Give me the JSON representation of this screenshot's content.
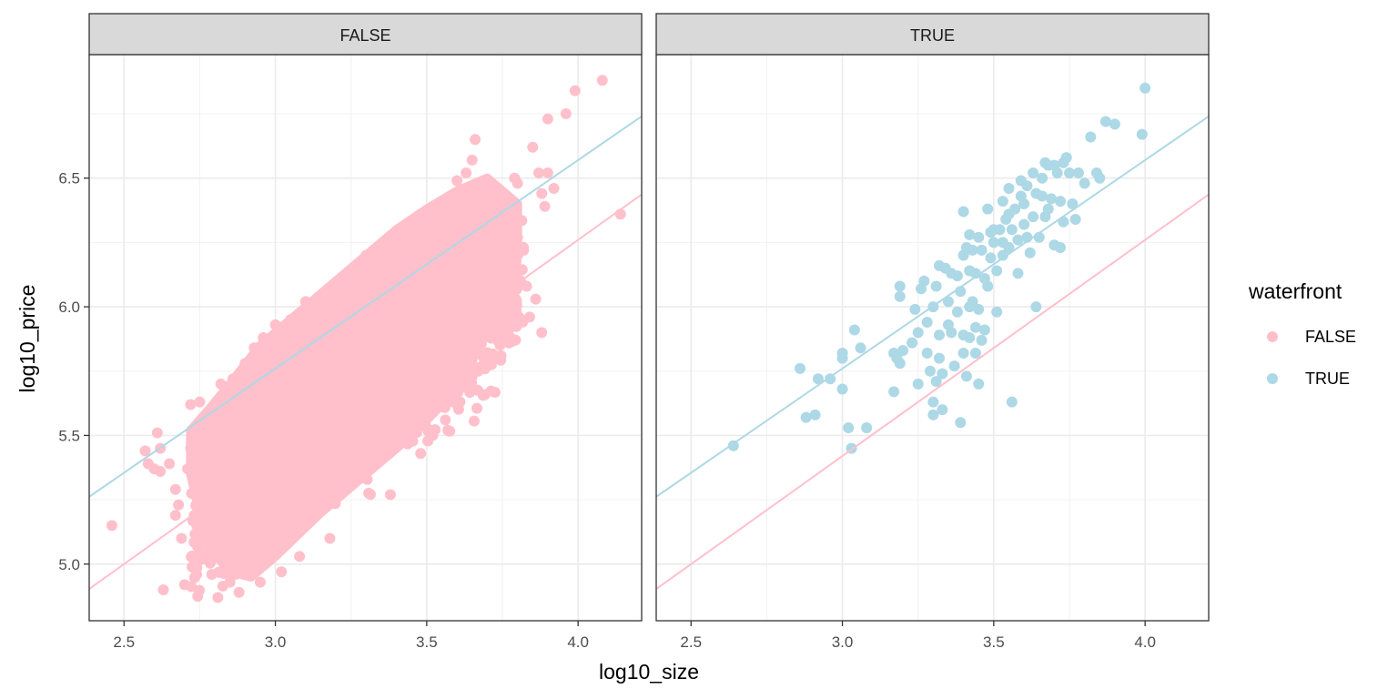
{
  "chart_data": {
    "type": "scatter",
    "facet_variable": "waterfront",
    "xlabel": "log10_size",
    "ylabel": "log10_price",
    "xlim": [
      2.385,
      4.21
    ],
    "ylim": [
      4.78,
      6.98
    ],
    "x_ticks": [
      2.5,
      3.0,
      3.5,
      4.0
    ],
    "x_tick_labels": [
      "2.5",
      "3.0",
      "3.5",
      "4.0"
    ],
    "y_ticks": [
      5.0,
      5.5,
      6.0,
      6.5
    ],
    "y_tick_labels": [
      "5.0",
      "5.5",
      "6.0",
      "6.5"
    ],
    "grid": true,
    "legend": {
      "title": "waterfront",
      "position": "right",
      "entries": [
        {
          "label": "FALSE",
          "color": "#FFC0CB"
        },
        {
          "label": "TRUE",
          "color": "#ADD8E6"
        }
      ]
    },
    "regression_lines": [
      {
        "group": "FALSE",
        "color": "#FFC0CB",
        "intercept": 2.9,
        "slope": 0.84
      },
      {
        "group": "TRUE",
        "color": "#ADD8E6",
        "intercept": 3.33,
        "slope": 0.81
      }
    ],
    "panels": [
      {
        "strip": "FALSE",
        "group": "FALSE",
        "color": "#FFC0CB",
        "cloud_polygon": [
          [
            2.72,
            5.52
          ],
          [
            2.78,
            5.6
          ],
          [
            2.85,
            5.7
          ],
          [
            2.95,
            5.85
          ],
          [
            3.1,
            6.0
          ],
          [
            3.25,
            6.15
          ],
          [
            3.4,
            6.3
          ],
          [
            3.5,
            6.38
          ],
          [
            3.6,
            6.45
          ],
          [
            3.7,
            6.5
          ],
          [
            3.8,
            6.4
          ],
          [
            3.8,
            6.2
          ],
          [
            3.75,
            6.0
          ],
          [
            3.65,
            5.8
          ],
          [
            3.55,
            5.62
          ],
          [
            3.45,
            5.5
          ],
          [
            3.3,
            5.35
          ],
          [
            3.15,
            5.2
          ],
          [
            3.0,
            5.03
          ],
          [
            2.92,
            4.95
          ],
          [
            2.85,
            4.97
          ],
          [
            2.8,
            5.05
          ],
          [
            2.75,
            5.2
          ],
          [
            2.72,
            5.35
          ]
        ],
        "points": [
          [
            2.46,
            5.15
          ],
          [
            2.57,
            5.44
          ],
          [
            2.58,
            5.39
          ],
          [
            2.6,
            5.37
          ],
          [
            2.61,
            5.51
          ],
          [
            2.62,
            5.36
          ],
          [
            2.63,
            4.9
          ],
          [
            2.62,
            5.45
          ],
          [
            2.65,
            5.39
          ],
          [
            2.67,
            5.19
          ],
          [
            2.67,
            5.29
          ],
          [
            2.68,
            5.23
          ],
          [
            2.69,
            5.1
          ],
          [
            2.7,
            4.92
          ],
          [
            2.71,
            5.37
          ],
          [
            2.72,
            5.62
          ],
          [
            2.72,
            5.45
          ],
          [
            2.73,
            5.28
          ],
          [
            2.74,
            4.96
          ],
          [
            2.75,
            5.63
          ],
          [
            2.75,
            5.05
          ],
          [
            2.77,
            5.58
          ],
          [
            2.78,
            5.02
          ],
          [
            2.79,
            4.96
          ],
          [
            2.8,
            5.3
          ],
          [
            2.81,
            4.87
          ],
          [
            2.82,
            5.7
          ],
          [
            2.83,
            5.0
          ],
          [
            2.84,
            5.65
          ],
          [
            2.85,
            4.93
          ],
          [
            2.86,
            5.72
          ],
          [
            2.88,
            4.89
          ],
          [
            2.9,
            5.78
          ],
          [
            2.91,
            4.98
          ],
          [
            2.93,
            5.84
          ],
          [
            2.95,
            4.93
          ],
          [
            2.96,
            5.88
          ],
          [
            3.0,
            5.93
          ],
          [
            3.02,
            4.97
          ],
          [
            3.05,
            5.95
          ],
          [
            3.08,
            5.03
          ],
          [
            3.1,
            6.02
          ],
          [
            3.15,
            6.02
          ],
          [
            3.18,
            5.1
          ],
          [
            3.2,
            6.08
          ],
          [
            3.25,
            6.12
          ],
          [
            3.3,
            6.2
          ],
          [
            3.35,
            6.23
          ],
          [
            3.38,
            5.27
          ],
          [
            3.4,
            6.29
          ],
          [
            3.45,
            6.33
          ],
          [
            3.48,
            5.43
          ],
          [
            3.5,
            6.37
          ],
          [
            3.52,
            5.5
          ],
          [
            3.55,
            6.4
          ],
          [
            3.57,
            5.52
          ],
          [
            3.6,
            6.49
          ],
          [
            3.61,
            5.63
          ],
          [
            3.63,
            6.52
          ],
          [
            3.64,
            5.7
          ],
          [
            3.65,
            6.57
          ],
          [
            3.67,
            5.75
          ],
          [
            3.7,
            6.48
          ],
          [
            3.71,
            5.8
          ],
          [
            3.72,
            6.42
          ],
          [
            3.74,
            5.9
          ],
          [
            3.75,
            6.32
          ],
          [
            3.76,
            6.0
          ],
          [
            3.77,
            6.35
          ],
          [
            3.78,
            6.05
          ],
          [
            3.79,
            6.5
          ],
          [
            3.8,
            6.48
          ],
          [
            3.8,
            6.27
          ],
          [
            3.81,
            6.1
          ],
          [
            3.82,
            6.22
          ],
          [
            3.83,
            6.08
          ],
          [
            3.84,
            5.96
          ],
          [
            3.85,
            6.62
          ],
          [
            3.86,
            6.03
          ],
          [
            3.87,
            6.52
          ],
          [
            3.88,
            5.9
          ],
          [
            3.88,
            6.44
          ],
          [
            3.89,
            6.39
          ],
          [
            3.9,
            6.73
          ],
          [
            3.9,
            6.52
          ],
          [
            3.92,
            6.46
          ],
          [
            3.96,
            6.75
          ],
          [
            3.99,
            6.84
          ],
          [
            4.08,
            6.88
          ],
          [
            4.14,
            6.36
          ],
          [
            3.66,
            6.65
          ],
          [
            3.2,
            5.62
          ],
          [
            3.3,
            5.75
          ],
          [
            3.4,
            5.9
          ],
          [
            3.1,
            5.5
          ],
          [
            3.0,
            5.4
          ],
          [
            2.9,
            5.3
          ],
          [
            3.5,
            5.95
          ],
          [
            3.6,
            6.1
          ],
          [
            3.45,
            5.8
          ],
          [
            3.35,
            5.6
          ],
          [
            3.25,
            5.45
          ],
          [
            2.95,
            5.2
          ],
          [
            3.05,
            5.65
          ],
          [
            3.15,
            5.8
          ],
          [
            3.55,
            6.2
          ],
          [
            3.65,
            6.3
          ],
          [
            2.85,
            5.45
          ],
          [
            2.8,
            5.55
          ],
          [
            3.7,
            6.15
          ],
          [
            3.0,
            5.75
          ]
        ]
      },
      {
        "strip": "TRUE",
        "group": "TRUE",
        "color": "#ADD8E6",
        "points": [
          [
            2.64,
            5.46
          ],
          [
            2.86,
            5.76
          ],
          [
            2.88,
            5.57
          ],
          [
            2.91,
            5.58
          ],
          [
            2.92,
            5.72
          ],
          [
            2.96,
            5.72
          ],
          [
            3.0,
            5.8
          ],
          [
            3.0,
            5.82
          ],
          [
            3.0,
            5.68
          ],
          [
            3.02,
            5.53
          ],
          [
            3.03,
            5.45
          ],
          [
            3.04,
            5.91
          ],
          [
            3.06,
            5.84
          ],
          [
            3.08,
            5.53
          ],
          [
            3.17,
            5.67
          ],
          [
            3.17,
            5.82
          ],
          [
            3.18,
            5.8
          ],
          [
            3.19,
            5.78
          ],
          [
            3.19,
            6.08
          ],
          [
            3.19,
            6.04
          ],
          [
            3.2,
            5.83
          ],
          [
            3.23,
            5.86
          ],
          [
            3.24,
            5.99
          ],
          [
            3.25,
            5.7
          ],
          [
            3.25,
            5.9
          ],
          [
            3.26,
            6.07
          ],
          [
            3.27,
            6.1
          ],
          [
            3.28,
            5.82
          ],
          [
            3.28,
            5.94
          ],
          [
            3.29,
            5.75
          ],
          [
            3.3,
            5.58
          ],
          [
            3.3,
            6.0
          ],
          [
            3.3,
            5.63
          ],
          [
            3.31,
            5.71
          ],
          [
            3.31,
            6.08
          ],
          [
            3.32,
            5.89
          ],
          [
            3.32,
            6.16
          ],
          [
            3.32,
            5.8
          ],
          [
            3.33,
            5.74
          ],
          [
            3.33,
            5.6
          ],
          [
            3.34,
            6.15
          ],
          [
            3.35,
            6.02
          ],
          [
            3.35,
            5.93
          ],
          [
            3.36,
            6.13
          ],
          [
            3.37,
            5.77
          ],
          [
            3.38,
            5.98
          ],
          [
            3.38,
            6.12
          ],
          [
            3.39,
            5.55
          ],
          [
            3.39,
            6.06
          ],
          [
            3.4,
            6.2
          ],
          [
            3.4,
            5.89
          ],
          [
            3.4,
            5.82
          ],
          [
            3.4,
            6.37
          ],
          [
            3.41,
            6.23
          ],
          [
            3.41,
            5.73
          ],
          [
            3.42,
            6.28
          ],
          [
            3.42,
            5.88
          ],
          [
            3.42,
            6.14
          ],
          [
            3.43,
            6.22
          ],
          [
            3.43,
            6.02
          ],
          [
            3.44,
            5.92
          ],
          [
            3.44,
            5.82
          ],
          [
            3.45,
            6.27
          ],
          [
            3.45,
            5.7
          ],
          [
            3.45,
            5.99
          ],
          [
            3.46,
            6.22
          ],
          [
            3.46,
            5.87
          ],
          [
            3.47,
            6.11
          ],
          [
            3.47,
            5.91
          ],
          [
            3.48,
            6.08
          ],
          [
            3.48,
            6.38
          ],
          [
            3.49,
            6.29
          ],
          [
            3.49,
            6.19
          ],
          [
            3.5,
            6.25
          ],
          [
            3.5,
            6.3
          ],
          [
            3.51,
            6.14
          ],
          [
            3.51,
            5.98
          ],
          [
            3.52,
            6.3
          ],
          [
            3.53,
            6.41
          ],
          [
            3.53,
            6.2
          ],
          [
            3.54,
            6.34
          ],
          [
            3.55,
            6.23
          ],
          [
            3.55,
            6.46
          ],
          [
            3.56,
            5.63
          ],
          [
            3.56,
            6.3
          ],
          [
            3.57,
            6.38
          ],
          [
            3.58,
            6.13
          ],
          [
            3.58,
            6.26
          ],
          [
            3.59,
            6.43
          ],
          [
            3.59,
            6.49
          ],
          [
            3.6,
            6.32
          ],
          [
            3.6,
            6.4
          ],
          [
            3.61,
            6.27
          ],
          [
            3.62,
            6.21
          ],
          [
            3.63,
            6.52
          ],
          [
            3.63,
            6.35
          ],
          [
            3.64,
            6.44
          ],
          [
            3.64,
            6.0
          ],
          [
            3.65,
            6.27
          ],
          [
            3.66,
            6.43
          ],
          [
            3.66,
            6.5
          ],
          [
            3.67,
            6.35
          ],
          [
            3.67,
            6.56
          ],
          [
            3.68,
            6.55
          ],
          [
            3.68,
            6.38
          ],
          [
            3.69,
            6.42
          ],
          [
            3.7,
            6.24
          ],
          [
            3.7,
            6.55
          ],
          [
            3.71,
            6.52
          ],
          [
            3.72,
            6.41
          ],
          [
            3.72,
            6.23
          ],
          [
            3.73,
            6.33
          ],
          [
            3.73,
            6.56
          ],
          [
            3.74,
            6.58
          ],
          [
            3.75,
            6.52
          ],
          [
            3.76,
            6.4
          ],
          [
            3.77,
            6.34
          ],
          [
            3.78,
            6.52
          ],
          [
            3.8,
            6.48
          ],
          [
            3.82,
            6.66
          ],
          [
            3.84,
            6.52
          ],
          [
            3.85,
            6.5
          ],
          [
            3.87,
            6.72
          ],
          [
            3.9,
            6.71
          ],
          [
            3.99,
            6.67
          ],
          [
            4.0,
            6.85
          ],
          [
            3.42,
            6.0
          ],
          [
            3.36,
            5.9
          ],
          [
            3.44,
            6.13
          ],
          [
            3.53,
            6.25
          ],
          [
            3.55,
            6.36
          ],
          [
            3.61,
            6.47
          ]
        ]
      }
    ]
  }
}
